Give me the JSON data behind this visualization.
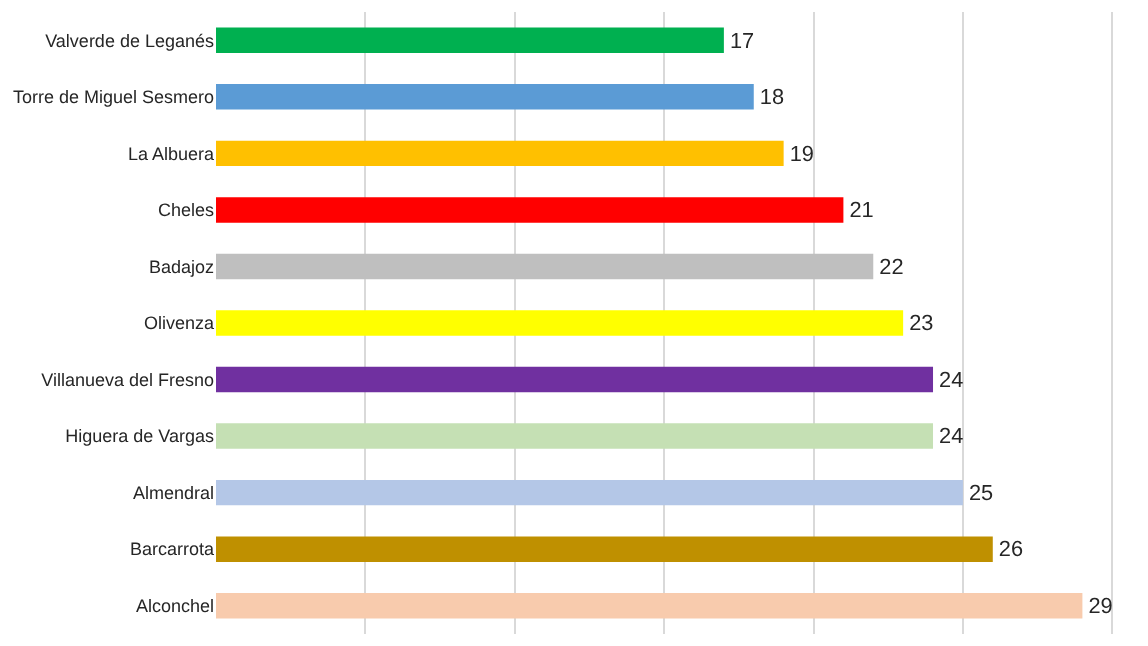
{
  "chart_data": {
    "type": "bar",
    "orientation": "horizontal",
    "categories": [
      "Valverde de Leganés",
      "Torre de Miguel Sesmero",
      "La Albuera",
      "Cheles",
      "Badajoz",
      "Olivenza",
      "Villanueva del Fresno",
      "Higuera de Vargas",
      "Almendral",
      "Barcarrota",
      "Alconchel"
    ],
    "values": [
      17,
      18,
      19,
      21,
      22,
      23,
      24,
      24,
      25,
      26,
      29
    ],
    "colors": [
      "#00b050",
      "#5b9bd5",
      "#ffc000",
      "#ff0000",
      "#bfbfbf",
      "#ffff00",
      "#7030a0",
      "#c5e0b4",
      "#b4c7e7",
      "#bf9000",
      "#f8cbad"
    ],
    "data_labels": true,
    "grid": "x",
    "tick_labels": "y",
    "legend": false
  }
}
